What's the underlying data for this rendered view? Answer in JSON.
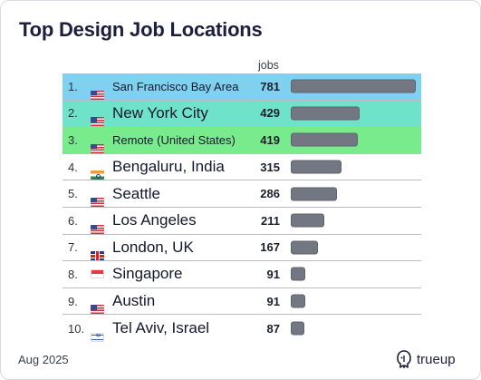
{
  "title": "Top Design Job Locations",
  "column_header": "jobs",
  "footer": {
    "date": "Aug 2025",
    "brand": "trueup"
  },
  "colors": {
    "row1_bg": "#7fd1ef",
    "row2_bg": "#6ee3c9",
    "row3_bg": "#78ec8c",
    "bar": "#737782"
  },
  "chart_data": {
    "type": "bar",
    "title": "Top Design Job Locations",
    "ylabel": "jobs",
    "categories": [
      "San Francisco Bay Area",
      "New York City",
      "Remote (United States)",
      "Bengaluru, India",
      "Seattle",
      "Los Angeles",
      "London, UK",
      "Singapore",
      "Austin",
      "Tel Aviv, Israel"
    ],
    "values": [
      781,
      429,
      419,
      315,
      286,
      211,
      167,
      91,
      91,
      87
    ]
  },
  "rows": [
    {
      "rank": "1.",
      "flag": "us-flag-icon",
      "location": "San Francisco Bay Area",
      "jobs": "781",
      "value": 781,
      "size": "small",
      "bg": "#7fd1ef"
    },
    {
      "rank": "2.",
      "flag": "us-flag-icon",
      "location": "New York City",
      "jobs": "429",
      "value": 429,
      "size": "big",
      "bg": "#6ee3c9"
    },
    {
      "rank": "3.",
      "flag": "us-flag-icon",
      "location": "Remote (United States)",
      "jobs": "419",
      "value": 419,
      "size": "small",
      "bg": "#78ec8c"
    },
    {
      "rank": "4.",
      "flag": "india-flag-icon",
      "location": "Bengaluru, India",
      "jobs": "315",
      "value": 315,
      "size": "big",
      "bg": ""
    },
    {
      "rank": "5.",
      "flag": "us-flag-icon",
      "location": "Seattle",
      "jobs": "286",
      "value": 286,
      "size": "big",
      "bg": ""
    },
    {
      "rank": "6.",
      "flag": "us-flag-icon",
      "location": "Los Angeles",
      "jobs": "211",
      "value": 211,
      "size": "big",
      "bg": ""
    },
    {
      "rank": "7.",
      "flag": "uk-flag-icon",
      "location": "London, UK",
      "jobs": "167",
      "value": 167,
      "size": "big",
      "bg": ""
    },
    {
      "rank": "8.",
      "flag": "singapore-flag-icon",
      "location": "Singapore",
      "jobs": "91",
      "value": 91,
      "size": "big",
      "bg": ""
    },
    {
      "rank": "9.",
      "flag": "us-flag-icon",
      "location": "Austin",
      "jobs": "91",
      "value": 91,
      "size": "big",
      "bg": ""
    },
    {
      "rank": "10.",
      "flag": "israel-flag-icon",
      "location": "Tel Aviv, Israel",
      "jobs": "87",
      "value": 87,
      "size": "big",
      "bg": ""
    }
  ]
}
